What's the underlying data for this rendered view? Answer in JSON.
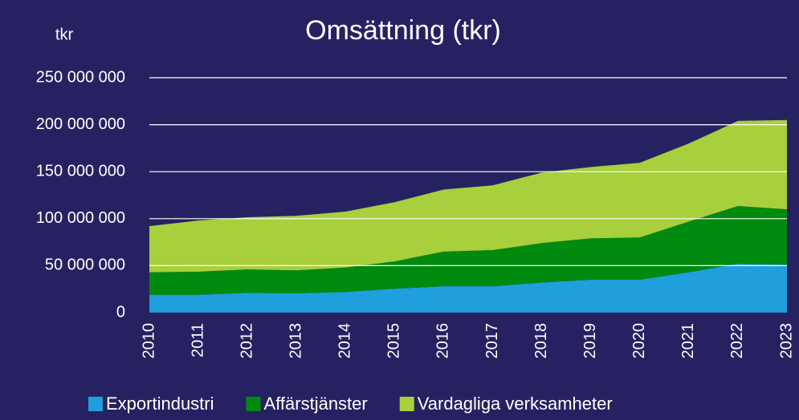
{
  "chart_data": {
    "type": "stacked_area",
    "title": "Omsättning (tkr)",
    "y_label": "tkr",
    "categories": [
      "2010",
      "2011",
      "2012",
      "2013",
      "2014",
      "2015",
      "2016",
      "2017",
      "2018",
      "2019",
      "2020",
      "2021",
      "2022",
      "2023"
    ],
    "series": [
      {
        "name": "Exportindustri",
        "color": "#1f9fdc",
        "values": [
          19000000,
          19000000,
          21000000,
          20500000,
          22000000,
          25500000,
          28000000,
          28000000,
          32000000,
          35000000,
          35000000,
          43000000,
          52000000,
          51000000
        ]
      },
      {
        "name": "Affärstjänster",
        "color": "#008a0e",
        "values": [
          24000000,
          24500000,
          25000000,
          24500000,
          26000000,
          29000000,
          37000000,
          38500000,
          42000000,
          44000000,
          45000000,
          54000000,
          61500000,
          59000000
        ]
      },
      {
        "name": "Vardagliga verksamheter",
        "color": "#a8cf3c",
        "values": [
          49000000,
          54500000,
          55500000,
          58000000,
          59500000,
          63000000,
          66000000,
          69000000,
          75000000,
          76000000,
          79500000,
          83000000,
          90500000,
          95000000
        ]
      }
    ],
    "ylim": [
      0,
      250000000
    ],
    "yticks": [
      0,
      {
        "value": 50000000,
        "label": "50 000 000"
      },
      {
        "value": 100000000,
        "label": "100 000 000"
      },
      {
        "value": 150000000,
        "label": "150 000 000"
      },
      {
        "value": 200000000,
        "label": "200 000 000"
      },
      {
        "value": 250000000,
        "label": "250 000 000"
      }
    ],
    "grid": true,
    "legend": "bottom"
  }
}
